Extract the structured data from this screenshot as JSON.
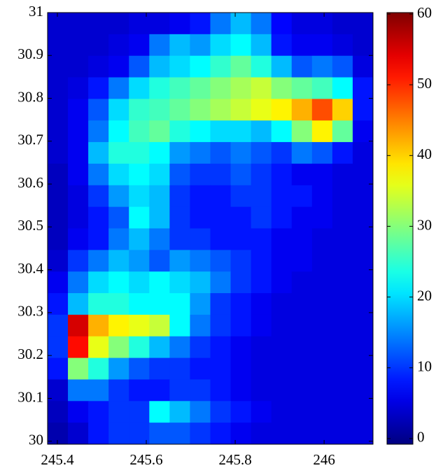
{
  "chart_data": {
    "type": "heatmap",
    "colormap": "jet",
    "xlim": [
      245.378,
      246.11
    ],
    "ylim": [
      29.993,
      31
    ],
    "xticks": [
      245.4,
      245.6,
      245.8,
      246
    ],
    "yticks": [
      30,
      30.1,
      30.2,
      30.3,
      30.4,
      30.5,
      30.6,
      30.7,
      30.8,
      30.9,
      31
    ],
    "clim": [
      -0.8,
      60.2
    ],
    "cticks": [
      0,
      10,
      20,
      30,
      40,
      50,
      60
    ],
    "z": [
      [
        4,
        4,
        4,
        4,
        5,
        5,
        6,
        8,
        14,
        18,
        14,
        7,
        5,
        5,
        4,
        4
      ],
      [
        4,
        4,
        4,
        5,
        6,
        14,
        18,
        16,
        20,
        22,
        18,
        8,
        6,
        6,
        5,
        4
      ],
      [
        4,
        4,
        5,
        6,
        12,
        18,
        20,
        22,
        25,
        28,
        24,
        18,
        12,
        14,
        12,
        5
      ],
      [
        4,
        5,
        8,
        14,
        20,
        24,
        26,
        28,
        30,
        32,
        34,
        30,
        28,
        26,
        22,
        8
      ],
      [
        4,
        6,
        12,
        20,
        25,
        26,
        28,
        30,
        32,
        34,
        36,
        38,
        42,
        48,
        40,
        8
      ],
      [
        4,
        6,
        14,
        22,
        26,
        28,
        24,
        22,
        20,
        20,
        18,
        22,
        30,
        38,
        28,
        6
      ],
      [
        4,
        6,
        18,
        24,
        24,
        22,
        16,
        14,
        12,
        14,
        12,
        10,
        14,
        12,
        8,
        5
      ],
      [
        3,
        6,
        14,
        20,
        22,
        20,
        12,
        10,
        10,
        12,
        10,
        8,
        6,
        6,
        5,
        5
      ],
      [
        3,
        5,
        10,
        16,
        20,
        18,
        10,
        8,
        8,
        10,
        10,
        8,
        8,
        6,
        5,
        5
      ],
      [
        3,
        5,
        8,
        12,
        22,
        18,
        10,
        8,
        8,
        8,
        10,
        8,
        6,
        6,
        5,
        5
      ],
      [
        3,
        6,
        8,
        14,
        18,
        14,
        10,
        10,
        8,
        8,
        8,
        6,
        6,
        5,
        5,
        5
      ],
      [
        4,
        10,
        14,
        18,
        16,
        12,
        16,
        14,
        12,
        10,
        8,
        6,
        6,
        5,
        5,
        5
      ],
      [
        6,
        14,
        20,
        22,
        20,
        22,
        20,
        18,
        14,
        10,
        8,
        6,
        5,
        5,
        5,
        5
      ],
      [
        8,
        18,
        24,
        24,
        22,
        22,
        22,
        16,
        10,
        8,
        6,
        5,
        5,
        5,
        5,
        5
      ],
      [
        10,
        55,
        42,
        38,
        36,
        34,
        22,
        14,
        10,
        8,
        6,
        5,
        5,
        5,
        5,
        5
      ],
      [
        10,
        52,
        36,
        30,
        24,
        18,
        14,
        10,
        8,
        6,
        5,
        5,
        5,
        5,
        5,
        5
      ],
      [
        8,
        30,
        24,
        16,
        12,
        10,
        10,
        8,
        8,
        6,
        5,
        5,
        5,
        5,
        5,
        5
      ],
      [
        4,
        14,
        14,
        10,
        8,
        8,
        10,
        10,
        8,
        6,
        5,
        5,
        5,
        5,
        5,
        5
      ],
      [
        3,
        6,
        8,
        10,
        10,
        22,
        18,
        14,
        10,
        8,
        6,
        5,
        5,
        5,
        5,
        5
      ],
      [
        2,
        4,
        8,
        10,
        10,
        12,
        12,
        10,
        8,
        6,
        5,
        5,
        5,
        5,
        5,
        5
      ]
    ]
  }
}
